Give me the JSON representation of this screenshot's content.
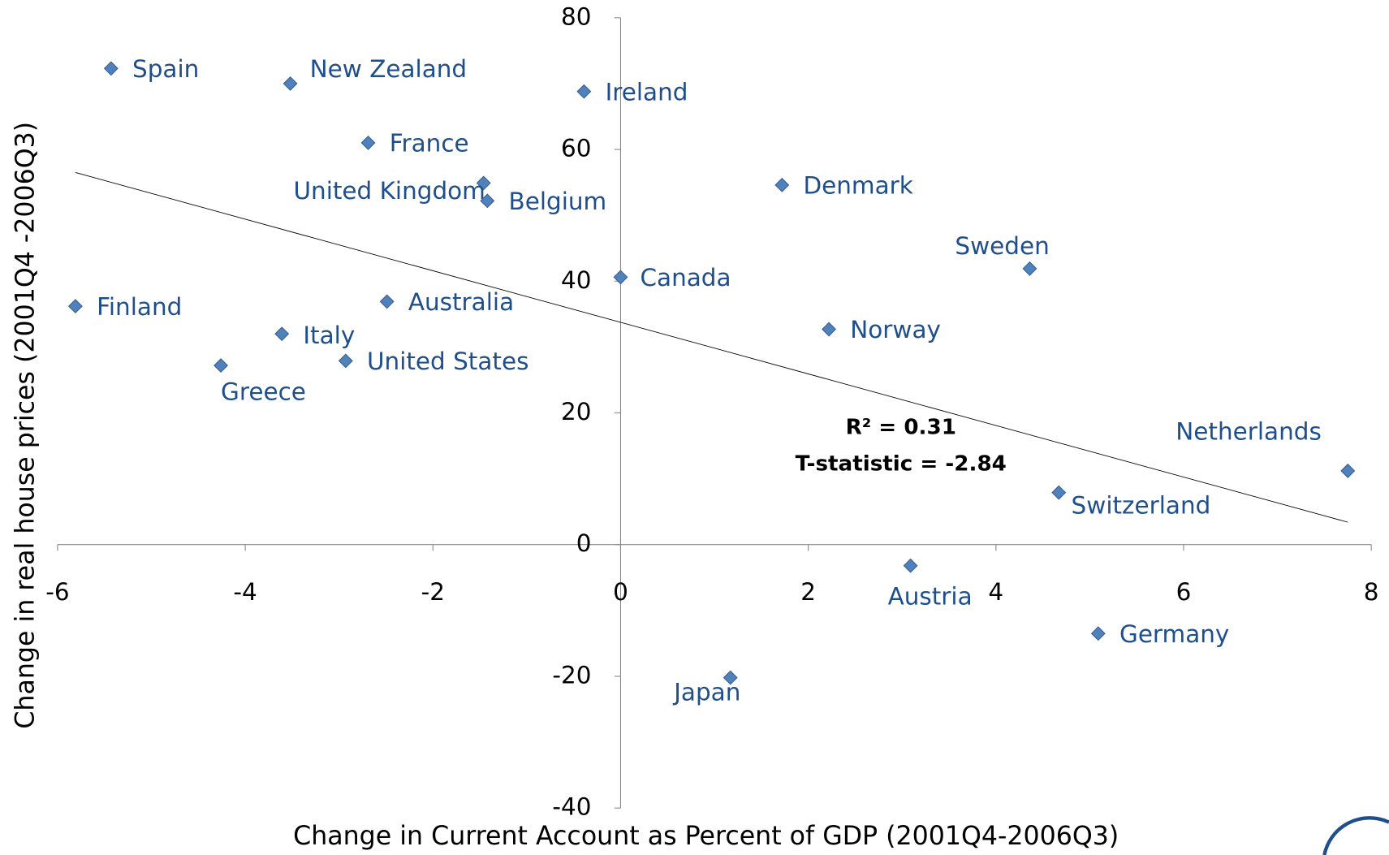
{
  "chart_data": {
    "type": "scatter",
    "x_label": "Change in Current Account as Percent of GDP (2001Q4-2006Q3)",
    "y_label": "Change in real house prices (2001Q4 -2006Q3)",
    "labels": [
      "Spain",
      "New Zealand",
      "Ireland",
      "France",
      "United Kingdom",
      "Belgium",
      "Denmark",
      "Sweden",
      "Canada",
      "Finland",
      "Australia",
      "Norway",
      "Italy",
      "United States",
      "Greece",
      "Netherlands",
      "Switzerland",
      "Austria",
      "Germany",
      "Japan"
    ],
    "x": [
      -5.43,
      -3.52,
      -0.39,
      -2.69,
      -1.46,
      -1.42,
      1.72,
      4.36,
      0.0,
      -5.81,
      -2.49,
      2.22,
      -3.61,
      -2.93,
      -4.26,
      7.75,
      4.67,
      3.09,
      5.09,
      1.17
    ],
    "y": [
      72.3,
      70.0,
      68.8,
      61.0,
      54.9,
      52.2,
      54.6,
      41.9,
      40.6,
      36.2,
      36.9,
      32.7,
      32.0,
      27.9,
      27.2,
      11.2,
      7.9,
      -3.2,
      -13.5,
      -20.2
    ],
    "color": "#4f81bd",
    "trend_line": {
      "x": [
        -5.81,
        7.75
      ],
      "y": [
        56.5,
        3.4
      ]
    },
    "annotations": [
      "R² = 0.31",
      "T-statistic = -2.84"
    ],
    "xlim": [
      -6,
      8
    ],
    "xticks": [
      -6,
      -4,
      -2,
      0,
      2,
      4,
      6,
      8
    ],
    "ylim": [
      -40,
      80
    ],
    "yticks": [
      -40,
      -20,
      0,
      20,
      40,
      60,
      80
    ]
  }
}
